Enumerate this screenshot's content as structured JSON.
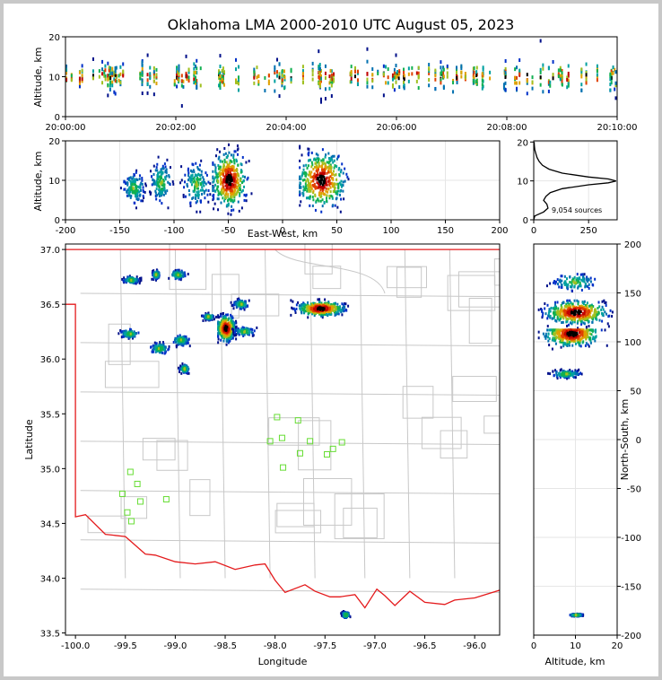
{
  "chart_data": [
    {
      "type": "heatmap",
      "panel": "time-altitude",
      "title": "Oklahoma LMA 2000-2010 UTC August 05, 2023",
      "xlabel": "",
      "ylabel": "Altitude, km",
      "xticks": [
        "20:00:00",
        "20:02:00",
        "20:04:00",
        "20:06:00",
        "20:08:00",
        "20:10:00"
      ],
      "xlim_minutes": [
        0,
        10
      ],
      "ylim": [
        0,
        20
      ],
      "yticks": [
        0,
        10,
        20
      ],
      "density": "source density, colored blue to green to red",
      "core_altitude_km": [
        5,
        15
      ]
    },
    {
      "type": "heatmap",
      "panel": "east-west vs altitude",
      "xlabel": "East-West, km",
      "ylabel": "Altitude, km",
      "xlim": [
        -200,
        200
      ],
      "xticks": [
        -200,
        -150,
        -100,
        -50,
        0,
        50,
        100,
        150,
        200
      ],
      "ylim": [
        0,
        20
      ],
      "yticks": [
        0,
        10,
        20
      ],
      "clusters": [
        {
          "x_range": [
            -150,
            -125
          ],
          "alt_range": [
            3,
            13
          ]
        },
        {
          "x_range": [
            -125,
            -100
          ],
          "alt_range": [
            3,
            16
          ]
        },
        {
          "x_range": [
            -95,
            -65
          ],
          "alt_range": [
            2,
            16
          ]
        },
        {
          "x_range": [
            -65,
            -25
          ],
          "alt_range": [
            1,
            19
          ],
          "peak": [
            -50,
            10
          ]
        },
        {
          "x_range": [
            15,
            70
          ],
          "alt_range": [
            2,
            20
          ],
          "peak": [
            35,
            10
          ]
        }
      ]
    },
    {
      "type": "line",
      "panel": "source count vs altitude",
      "annotation": "9,054 sources",
      "xlim": [
        0,
        380
      ],
      "xticks": [
        0,
        250
      ],
      "ylim": [
        0,
        20
      ],
      "yticks": [
        0,
        10,
        20
      ],
      "profile": [
        {
          "alt": 0.0,
          "count": 0
        },
        {
          "alt": 1.0,
          "count": 5
        },
        {
          "alt": 2.0,
          "count": 45
        },
        {
          "alt": 3.0,
          "count": 65
        },
        {
          "alt": 4.0,
          "count": 60
        },
        {
          "alt": 5.0,
          "count": 45
        },
        {
          "alt": 6.0,
          "count": 55
        },
        {
          "alt": 7.0,
          "count": 75
        },
        {
          "alt": 8.0,
          "count": 130
        },
        {
          "alt": 9.0,
          "count": 250
        },
        {
          "alt": 9.5,
          "count": 340
        },
        {
          "alt": 10.0,
          "count": 375
        },
        {
          "alt": 10.5,
          "count": 340
        },
        {
          "alt": 11.0,
          "count": 250
        },
        {
          "alt": 12.0,
          "count": 130
        },
        {
          "alt": 13.0,
          "count": 70
        },
        {
          "alt": 14.0,
          "count": 40
        },
        {
          "alt": 15.0,
          "count": 25
        },
        {
          "alt": 16.0,
          "count": 15
        },
        {
          "alt": 17.0,
          "count": 10
        },
        {
          "alt": 18.0,
          "count": 5
        },
        {
          "alt": 19.0,
          "count": 3
        },
        {
          "alt": 20.0,
          "count": 2
        }
      ]
    },
    {
      "type": "heatmap",
      "panel": "plan view map",
      "xlabel": "Longitude",
      "ylabel": "Latitude",
      "xlim": [
        -100.1,
        -95.75
      ],
      "ylim": [
        33.48,
        37.05
      ],
      "xticks": [
        -100.0,
        -99.5,
        -99.0,
        -98.5,
        -98.0,
        -97.5,
        -97.0,
        -96.5,
        -96.0
      ],
      "yticks": [
        33.5,
        34.0,
        34.5,
        35.0,
        35.5,
        36.0,
        36.5,
        37.0
      ],
      "border_color": "#e41a1c",
      "county_color": "#c8c8c8",
      "station_color": "#66dd33",
      "stations": [
        {
          "lon": -97.98,
          "lat": 35.47
        },
        {
          "lon": -97.77,
          "lat": 35.44
        },
        {
          "lon": -98.05,
          "lat": 35.25
        },
        {
          "lon": -97.93,
          "lat": 35.28
        },
        {
          "lon": -97.65,
          "lat": 35.25
        },
        {
          "lon": -97.33,
          "lat": 35.24
        },
        {
          "lon": -97.75,
          "lat": 35.14
        },
        {
          "lon": -97.42,
          "lat": 35.18
        },
        {
          "lon": -97.48,
          "lat": 35.13
        },
        {
          "lon": -97.92,
          "lat": 35.01
        },
        {
          "lon": -99.45,
          "lat": 34.97
        },
        {
          "lon": -99.38,
          "lat": 34.86
        },
        {
          "lon": -99.53,
          "lat": 34.77
        },
        {
          "lon": -99.35,
          "lat": 34.7
        },
        {
          "lon": -99.09,
          "lat": 34.72
        },
        {
          "lon": -99.48,
          "lat": 34.6
        },
        {
          "lon": -99.44,
          "lat": 34.52
        }
      ],
      "clusters": [
        {
          "lon": [
            -99.55,
            -99.35
          ],
          "lat": [
            36.68,
            36.76
          ]
        },
        {
          "lon": [
            -99.25,
            -99.15
          ],
          "lat": [
            36.72,
            36.82
          ]
        },
        {
          "lon": [
            -99.08,
            -98.88
          ],
          "lat": [
            36.72,
            36.82
          ]
        },
        {
          "lon": [
            -99.58,
            -99.35
          ],
          "lat": [
            36.18,
            36.28
          ]
        },
        {
          "lon": [
            -99.28,
            -99.05
          ],
          "lat": [
            36.03,
            36.16
          ]
        },
        {
          "lon": [
            -99.05,
            -98.85
          ],
          "lat": [
            36.11,
            36.23
          ]
        },
        {
          "lon": [
            -98.98,
            -98.85
          ],
          "lat": [
            35.86,
            35.96
          ]
        },
        {
          "lon": [
            -98.75,
            -98.6
          ],
          "lat": [
            36.35,
            36.42
          ]
        },
        {
          "lon": [
            -98.58,
            -98.35
          ],
          "lat": [
            36.12,
            36.42
          ],
          "peak": [
            -98.5,
            36.28
          ]
        },
        {
          "lon": [
            -98.45,
            -98.18
          ],
          "lat": [
            36.2,
            36.3
          ]
        },
        {
          "lon": [
            -98.45,
            -98.25
          ],
          "lat": [
            36.45,
            36.55
          ]
        },
        {
          "lon": [
            -97.85,
            -97.25
          ],
          "lat": [
            36.38,
            36.55
          ],
          "peak": [
            -97.55,
            36.46
          ]
        },
        {
          "lon": [
            -97.35,
            -97.25
          ],
          "lat": [
            33.63,
            33.7
          ]
        }
      ]
    },
    {
      "type": "heatmap",
      "panel": "altitude vs north-south",
      "xlabel": "Altitude, km",
      "ylabel": "North-South, km",
      "xlim": [
        0,
        20
      ],
      "xticks": [
        0,
        10,
        20
      ],
      "ylim": [
        -200,
        200
      ],
      "yticks": [
        -200,
        -150,
        -100,
        -50,
        0,
        50,
        100,
        150,
        200
      ],
      "clusters": [
        {
          "alt_range": [
            3,
            16
          ],
          "ns_range": [
            150,
            172
          ]
        },
        {
          "alt_range": [
            1,
            20
          ],
          "ns_range": [
            112,
            142
          ],
          "peak": [
            10,
            130
          ]
        },
        {
          "alt_range": [
            1,
            18
          ],
          "ns_range": [
            80,
            112
          ],
          "peak": [
            9,
            108
          ]
        },
        {
          "alt_range": [
            3,
            12
          ],
          "ns_range": [
            62,
            72
          ]
        },
        {
          "alt_range": [
            8,
            12
          ],
          "ns_range": [
            -181,
            -178
          ]
        }
      ]
    }
  ]
}
